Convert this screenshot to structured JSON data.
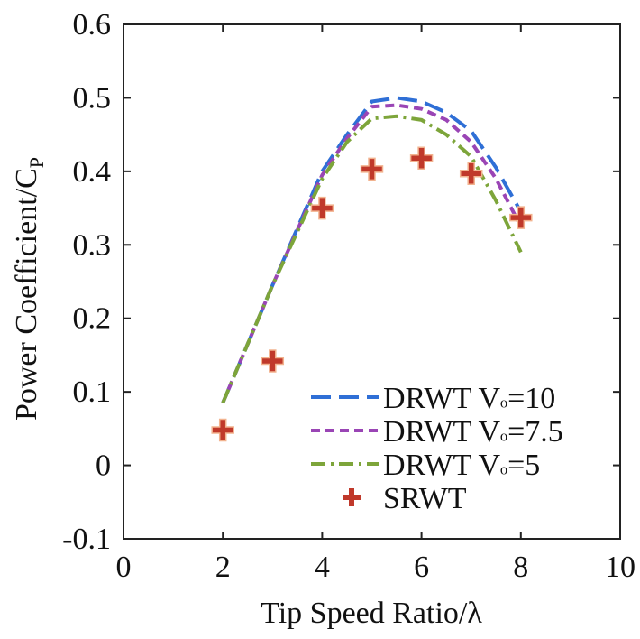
{
  "chart_data": {
    "type": "line",
    "xlabel": "Tip Speed Ratio/λ",
    "ylabel": "Power Coefficient/C",
    "ylabel_sub": "P",
    "xlim": [
      0,
      10
    ],
    "ylim": [
      -0.1,
      0.6
    ],
    "xticks": [
      "0",
      "2",
      "4",
      "6",
      "8",
      "10"
    ],
    "yticks": [
      "-0.1",
      "0",
      "0.1",
      "0.2",
      "0.3",
      "0.4",
      "0.5",
      "0.6"
    ],
    "grid": false,
    "legend_position": "bottom-right",
    "series": [
      {
        "name": "DRWT V₀=10",
        "legend_prefix": "DRWT V",
        "legend_suffix": "=10",
        "color": "#2f6fd6",
        "style": "dash",
        "x": [
          2,
          3,
          4,
          4.5,
          5,
          5.5,
          6,
          6.5,
          7,
          7.5,
          8
        ],
        "y": [
          0.085,
          0.245,
          0.4,
          0.45,
          0.495,
          0.5,
          0.495,
          0.48,
          0.455,
          0.405,
          0.345
        ]
      },
      {
        "name": "DRWT V₀=7.5",
        "legend_prefix": "DRWT V",
        "legend_suffix": "=7.5",
        "color": "#9a45b5",
        "style": "shortdash",
        "x": [
          2,
          3,
          4,
          4.5,
          5,
          5.5,
          6,
          6.5,
          7,
          7.5,
          8
        ],
        "y": [
          0.085,
          0.245,
          0.395,
          0.445,
          0.488,
          0.49,
          0.485,
          0.47,
          0.44,
          0.39,
          0.325
        ]
      },
      {
        "name": "DRWT V₀=5",
        "legend_prefix": "DRWT V",
        "legend_suffix": "=5",
        "color": "#7da53a",
        "style": "dashdot",
        "x": [
          2,
          3,
          4,
          4.5,
          5,
          5.5,
          6,
          6.5,
          7,
          7.5,
          8
        ],
        "y": [
          0.085,
          0.245,
          0.39,
          0.44,
          0.472,
          0.475,
          0.47,
          0.45,
          0.42,
          0.36,
          0.29
        ]
      },
      {
        "name": "SRWT",
        "legend_prefix": "SRWT",
        "legend_suffix": "",
        "color": "#c0392b",
        "style": "marker-plus",
        "x": [
          2,
          3,
          4,
          5,
          6,
          7,
          8
        ],
        "y": [
          0.048,
          0.142,
          0.35,
          0.403,
          0.418,
          0.397,
          0.337
        ]
      }
    ]
  }
}
